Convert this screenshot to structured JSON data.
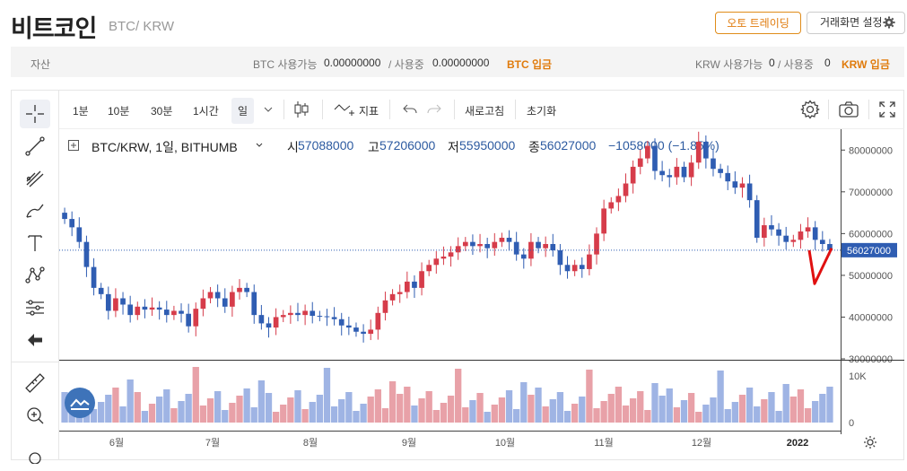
{
  "header": {
    "title": "비트코인",
    "subtitle": "BTC/ KRW",
    "auto_trading": "오토 트레이딩",
    "screen_settings": "거래화면 설정"
  },
  "assets": {
    "label": "자산",
    "btc_available_label": "BTC 사용가능",
    "btc_available": "0.00000000",
    "btc_in_use_label": "/ 사용중",
    "btc_in_use": "0.00000000",
    "btc_deposit": "BTC 입금",
    "krw_available_label": "KRW 사용가능",
    "krw_available": "0",
    "krw_in_use_label": "/ 사용중",
    "krw_in_use": "0",
    "krw_deposit": "KRW 입금"
  },
  "toolbar": {
    "intervals": [
      "1분",
      "10분",
      "30분",
      "1시간",
      "일"
    ],
    "active_interval": "일",
    "indicators": "지표",
    "refresh": "새로고침",
    "reset": "초기화"
  },
  "legend": {
    "symbol": "BTC/KRW, 1일, BITHUMB",
    "open_label": "시",
    "open": "57088000",
    "high_label": "고",
    "high": "57206000",
    "low_label": "저",
    "low": "55950000",
    "close_label": "종",
    "close": "56027000",
    "change": "−1058000 (−1.85%)"
  },
  "price_axis": {
    "ticks": [
      "80000000",
      "70000000",
      "60000000",
      "50000000",
      "40000000",
      "30000000"
    ],
    "current_price": "56027000"
  },
  "volume_axis": {
    "ticks": [
      "10K",
      "0"
    ]
  },
  "date_axis": {
    "ticks": [
      "6월",
      "7월",
      "8월",
      "9월",
      "10월",
      "11월",
      "12월",
      "2022"
    ]
  },
  "colors": {
    "up": "#d63c4a",
    "down": "#2f5db2",
    "accent": "#e07b0c",
    "annotation": "#e01010"
  },
  "chart_data": {
    "type": "candlestick",
    "period": "1일",
    "ylim": [
      30000000,
      85000000
    ],
    "series": [
      {
        "name": "BTC/KRW",
        "close": [
          63500000,
          61500000,
          58000000,
          52000000,
          47000000,
          45500000,
          41500000,
          44500000,
          43000000,
          40500000,
          42500000,
          41800000,
          42300000,
          41800000,
          40500000,
          41500000,
          40800000,
          37800000,
          42000000,
          44500000,
          46000000,
          44500000,
          42500000,
          46000000,
          47000000,
          46000000,
          40500000,
          38500000,
          37500000,
          40000000,
          40500000,
          41000000,
          40500000,
          41500000,
          40300000,
          40200000,
          40000000,
          39500000,
          38000000,
          37500000,
          36500000,
          36000000,
          37000000,
          41000000,
          44000000,
          45500000,
          46000000,
          48500000,
          47000000,
          51000000,
          52500000,
          54000000,
          54500000,
          55500000,
          57000000,
          58000000,
          57000000,
          57500000,
          56500000,
          58000000,
          59000000,
          58000000,
          55000000,
          54000000,
          58000000,
          56500000,
          57500000,
          56000000,
          52500000,
          51000000,
          52500000,
          51500000,
          55000000,
          60000000,
          66000000,
          67500000,
          69000000,
          72000000,
          76000000,
          78000000,
          81000000,
          75000000,
          74000000,
          73500000,
          76000000,
          73500000,
          77000000,
          82000000,
          78000000,
          75500000,
          74500000,
          72500000,
          71000000,
          72000000,
          68000000,
          59000000,
          62000000,
          61000000,
          59500000,
          58000000,
          58500000,
          60500000,
          61500000,
          58500000,
          57500000,
          56027000
        ]
      },
      {
        "name": "annotation",
        "values": [
          56000000,
          48000000,
          56500000
        ]
      }
    ],
    "volume_ticks": [
      "10K",
      "0"
    ]
  }
}
